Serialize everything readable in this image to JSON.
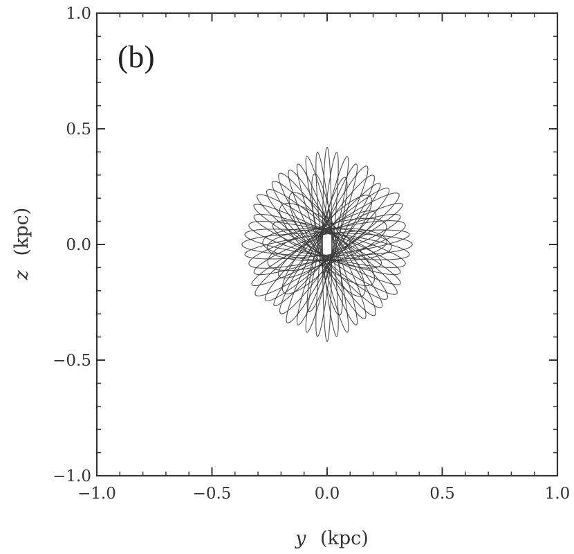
{
  "chart_data": {
    "type": "line",
    "panel_label": "(b)",
    "xlabel_var": "y",
    "xlabel_unit": "(kpc)",
    "ylabel_var": "z",
    "ylabel_unit": "(kpc)",
    "xlim": [
      -1.0,
      1.0
    ],
    "ylim": [
      -1.0,
      1.0
    ],
    "x_ticks": [
      -1.0,
      -0.5,
      0.0,
      0.5,
      1.0
    ],
    "y_ticks": [
      -1.0,
      -0.5,
      0.0,
      0.5,
      1.0
    ],
    "x_tick_labels": [
      "−1.0",
      "−0.5",
      "0.0",
      "0.5",
      "1.0"
    ],
    "y_tick_labels": [
      "−1.0",
      "−0.5",
      "0.0",
      "0.5",
      "1.0"
    ],
    "minor_tick_step": 0.1,
    "grid": false,
    "line_color": "#3a3a3a",
    "series": [
      {
        "description": "orbit loops (rotated ellipses)",
        "loops": [
          {
            "angle_deg": 0,
            "a": 0.37,
            "b": 0.05
          },
          {
            "angle_deg": 7,
            "a": 0.36,
            "b": 0.045
          },
          {
            "angle_deg": 14,
            "a": 0.35,
            "b": 0.06
          },
          {
            "angle_deg": 21,
            "a": 0.34,
            "b": 0.05
          },
          {
            "angle_deg": 28,
            "a": 0.37,
            "b": 0.045
          },
          {
            "angle_deg": 35,
            "a": 0.38,
            "b": 0.055
          },
          {
            "angle_deg": 42,
            "a": 0.36,
            "b": 0.05
          },
          {
            "angle_deg": 49,
            "a": 0.35,
            "b": 0.04
          },
          {
            "angle_deg": 56,
            "a": 0.36,
            "b": 0.05
          },
          {
            "angle_deg": 63,
            "a": 0.38,
            "b": 0.045
          },
          {
            "angle_deg": 70,
            "a": 0.37,
            "b": 0.035
          },
          {
            "angle_deg": 77,
            "a": 0.39,
            "b": 0.03
          },
          {
            "angle_deg": 84,
            "a": 0.4,
            "b": 0.025
          },
          {
            "angle_deg": 90,
            "a": 0.42,
            "b": 0.02
          },
          {
            "angle_deg": 96,
            "a": 0.4,
            "b": 0.025
          },
          {
            "angle_deg": 103,
            "a": 0.39,
            "b": 0.03
          },
          {
            "angle_deg": 110,
            "a": 0.37,
            "b": 0.035
          },
          {
            "angle_deg": 117,
            "a": 0.36,
            "b": 0.045
          },
          {
            "angle_deg": 124,
            "a": 0.37,
            "b": 0.05
          },
          {
            "angle_deg": 131,
            "a": 0.36,
            "b": 0.05
          },
          {
            "angle_deg": 138,
            "a": 0.35,
            "b": 0.055
          },
          {
            "angle_deg": 145,
            "a": 0.37,
            "b": 0.05
          },
          {
            "angle_deg": 152,
            "a": 0.36,
            "b": 0.045
          },
          {
            "angle_deg": 159,
            "a": 0.34,
            "b": 0.05
          },
          {
            "angle_deg": 166,
            "a": 0.35,
            "b": 0.055
          },
          {
            "angle_deg": 173,
            "a": 0.36,
            "b": 0.05
          },
          {
            "angle_deg": 3,
            "a": 0.26,
            "b": 0.07
          },
          {
            "angle_deg": 18,
            "a": 0.27,
            "b": 0.08
          },
          {
            "angle_deg": 33,
            "a": 0.25,
            "b": 0.06
          },
          {
            "angle_deg": 48,
            "a": 0.28,
            "b": 0.07
          },
          {
            "angle_deg": 75,
            "a": 0.3,
            "b": 0.04
          },
          {
            "angle_deg": 100,
            "a": 0.31,
            "b": 0.04
          },
          {
            "angle_deg": 125,
            "a": 0.27,
            "b": 0.07
          },
          {
            "angle_deg": 140,
            "a": 0.26,
            "b": 0.08
          },
          {
            "angle_deg": 160,
            "a": 0.25,
            "b": 0.06
          },
          {
            "angle_deg": 178,
            "a": 0.28,
            "b": 0.07
          }
        ]
      }
    ]
  }
}
